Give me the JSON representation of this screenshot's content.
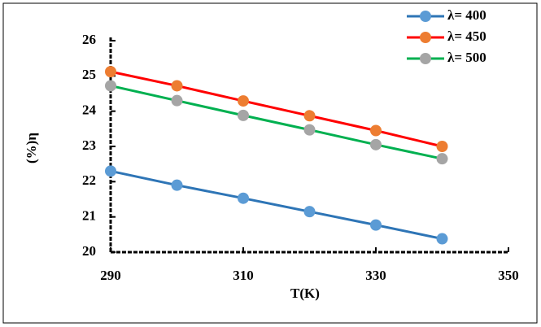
{
  "chart_data": {
    "type": "line",
    "x_label": "T(K)",
    "y_label": "(%)η",
    "x": [
      290,
      300,
      310,
      320,
      330,
      340
    ],
    "series": [
      {
        "name": "λ= 400",
        "color": "#2e75b6",
        "marker_color": "#5b9bd5",
        "values": [
          22.3,
          21.9,
          21.53,
          21.15,
          20.77,
          20.38
        ]
      },
      {
        "name": "λ= 450",
        "color": "#ff0000",
        "marker_color": "#ed7d31",
        "values": [
          25.12,
          24.72,
          24.29,
          23.87,
          23.45,
          23.0
        ]
      },
      {
        "name": "λ= 500",
        "color": "#00b050",
        "marker_color": "#a5a5a5",
        "values": [
          24.72,
          24.3,
          23.88,
          23.47,
          23.05,
          22.65
        ]
      }
    ],
    "xlim": [
      290,
      350
    ],
    "xticks": [
      290,
      310,
      330,
      350
    ],
    "ylim": [
      20,
      26
    ],
    "yticks": [
      20,
      21,
      22,
      23,
      24,
      25,
      26
    ],
    "grid": false,
    "legend": "top-right"
  }
}
